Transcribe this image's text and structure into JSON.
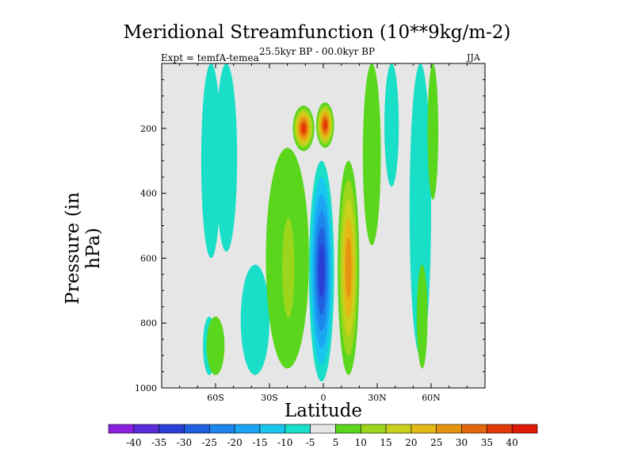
{
  "chart_data": {
    "type": "heatmap",
    "title": "Meridional Streamfunction (10**9kg/m-2)",
    "subtitle": "25.5kyr BP - 00.0kyr BP",
    "left_label": "Expt = temfA-temea",
    "right_label": "JJA",
    "xlabel": "Latitude",
    "ylabel": "Pressure (in hPa)",
    "x_range": [
      -90,
      90
    ],
    "y_range": [
      0,
      1000
    ],
    "y_inverted": true,
    "x_ticks": [
      {
        "value": -60,
        "label": "60S"
      },
      {
        "value": -30,
        "label": "30S"
      },
      {
        "value": 0,
        "label": "0"
      },
      {
        "value": 30,
        "label": "30N"
      },
      {
        "value": 60,
        "label": "60N"
      }
    ],
    "y_ticks": [
      {
        "value": 200,
        "label": "200"
      },
      {
        "value": 400,
        "label": "400"
      },
      {
        "value": 600,
        "label": "600"
      },
      {
        "value": 800,
        "label": "800"
      },
      {
        "value": 1000,
        "label": "1000"
      }
    ],
    "contour_levels": [
      -40,
      -35,
      -30,
      -25,
      -20,
      -15,
      -10,
      -5,
      5,
      10,
      15,
      20,
      25,
      30,
      35,
      40
    ],
    "colorbar_labels": [
      "-40",
      "-35",
      "-30",
      "-25",
      "-20",
      "-15",
      "-10",
      "-5",
      "5",
      "10",
      "15",
      "20",
      "25",
      "30",
      "35",
      "40"
    ],
    "colorbar_colors": [
      "#8a1fe0",
      "#5a2bd9",
      "#2a3fd6",
      "#1f5fe0",
      "#1d86ec",
      "#1aa6f2",
      "#19c6ee",
      "#19dec8",
      "#e6e6e6",
      "#5ad61d",
      "#9bd61c",
      "#c8d11b",
      "#e2b915",
      "#e69410",
      "#e4680b",
      "#e33a08",
      "#de1a06"
    ],
    "background_color": "#e6e6e6",
    "features": [
      {
        "name": "cyan band 70S-60S",
        "lat": [
          -68,
          -57
        ],
        "p": [
          0,
          600
        ],
        "value": -7
      },
      {
        "name": "cyan tongue 60S-30S upper",
        "lat": [
          -60,
          -48
        ],
        "p": [
          0,
          580
        ],
        "value": -7
      },
      {
        "name": "cyan lower 65S",
        "lat": [
          -67,
          -60
        ],
        "p": [
          780,
          960
        ],
        "value": -8
      },
      {
        "name": "cyan mid 40S",
        "lat": [
          -46,
          -30
        ],
        "p": [
          620,
          960
        ],
        "value": -9
      },
      {
        "name": "green upper left band",
        "lat": [
          -65,
          -55
        ],
        "p": [
          780,
          960
        ],
        "value": 6
      },
      {
        "name": "green plume 20S",
        "lat": [
          -32,
          -8
        ],
        "p": [
          260,
          940
        ],
        "value": 8
      },
      {
        "name": "yellow core 20S",
        "lat": [
          -25,
          -14
        ],
        "p": [
          380,
          880
        ],
        "value": 14
      },
      {
        "name": "upper dipole left max",
        "lat": [
          -17,
          -5
        ],
        "p": [
          130,
          270
        ],
        "value": 35
      },
      {
        "name": "upper dipole right max",
        "lat": [
          -4,
          6
        ],
        "p": [
          120,
          260
        ],
        "value": 38
      },
      {
        "name": "blue minimum equator",
        "lat": [
          -8,
          6
        ],
        "p": [
          300,
          980
        ],
        "value": -32
      },
      {
        "name": "orange max 10N",
        "lat": [
          8,
          20
        ],
        "p": [
          300,
          960
        ],
        "value": 28
      },
      {
        "name": "green band 30N",
        "lat": [
          22,
          32
        ],
        "p": [
          0,
          560
        ],
        "value": 7
      },
      {
        "name": "cyan band 35N",
        "lat": [
          34,
          42
        ],
        "p": [
          0,
          380
        ],
        "value": -6
      },
      {
        "name": "cyan band 50N",
        "lat": [
          48,
          60
        ],
        "p": [
          0,
          900
        ],
        "value": -9
      },
      {
        "name": "green band 60N",
        "lat": [
          58,
          64
        ],
        "p": [
          0,
          420
        ],
        "value": 7
      },
      {
        "name": "green low 55N",
        "lat": [
          52,
          58
        ],
        "p": [
          620,
          940
        ],
        "value": 6
      }
    ]
  }
}
